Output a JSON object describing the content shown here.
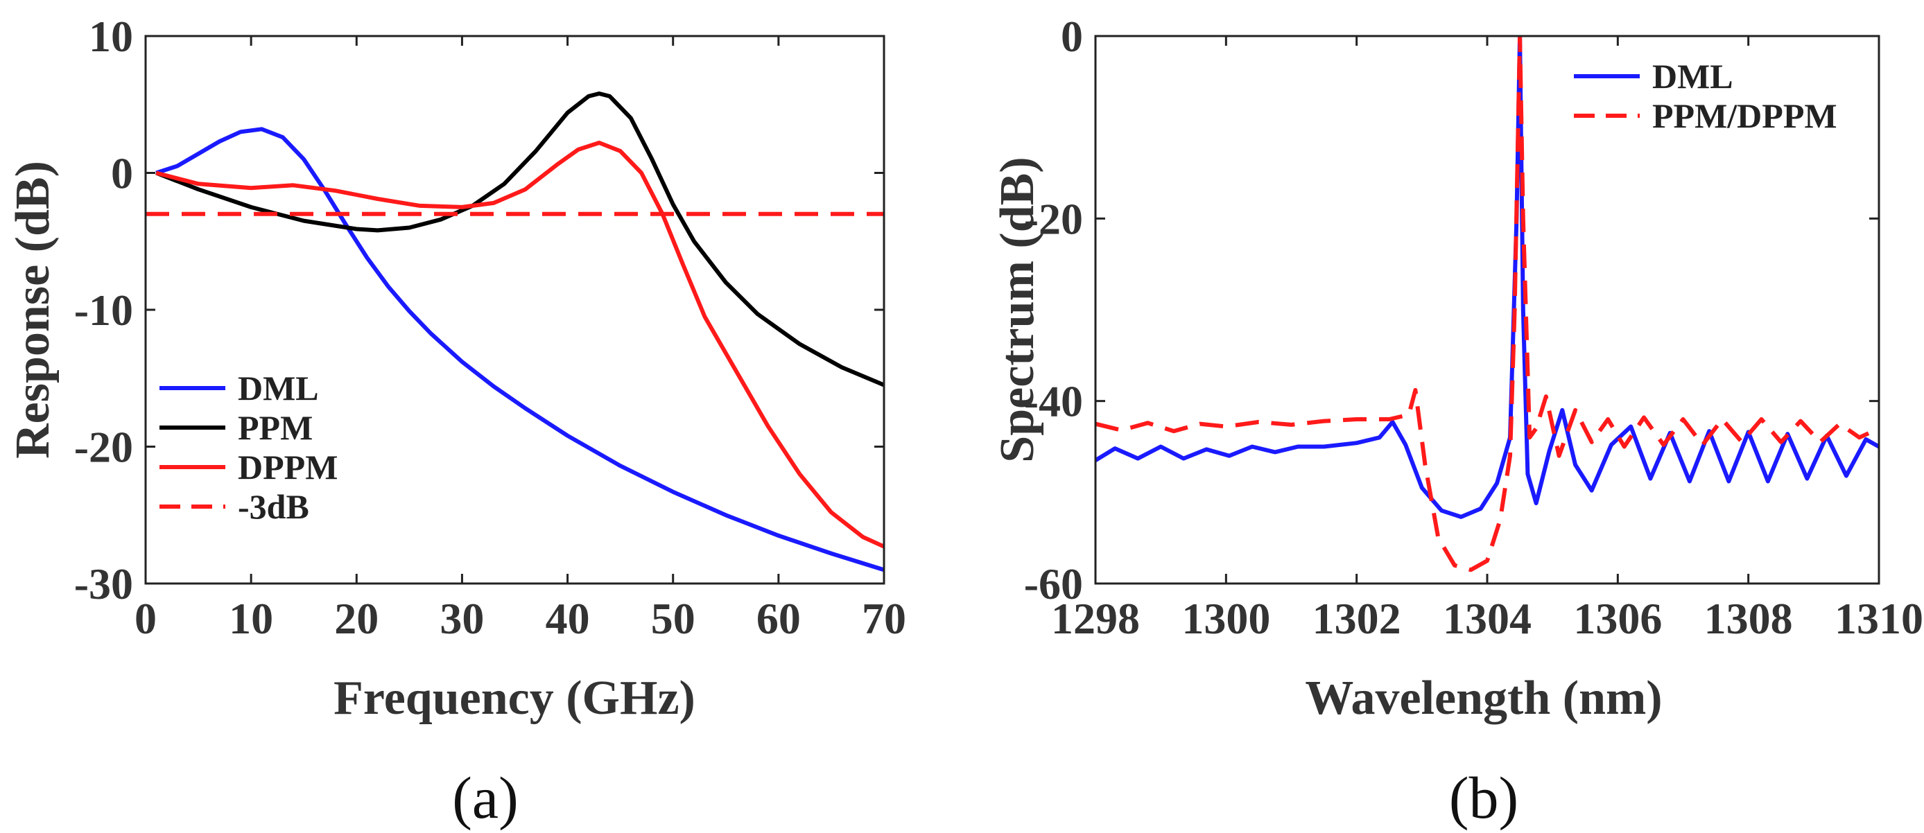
{
  "colors": {
    "blue": "#1a1aff",
    "black": "#000000",
    "red": "#ff1a1a",
    "axis": "#222222"
  },
  "chart_data": [
    {
      "type": "line",
      "caption": "(a)",
      "xlabel": "Frequency (GHz)",
      "ylabel": "Response (dB)",
      "xlim": [
        0,
        70
      ],
      "ylim": [
        -30,
        10
      ],
      "xticks": [
        "0",
        "10",
        "20",
        "30",
        "40",
        "50",
        "60",
        "70"
      ],
      "yticks": [
        "-30",
        "-20",
        "-10",
        "0",
        "10"
      ],
      "grid": false,
      "legend_position": "bottom-left",
      "series": [
        {
          "name": "DML",
          "color": "#1a1aff",
          "dash": "solid",
          "x": [
            1,
            3,
            5,
            7,
            9,
            11,
            13,
            15,
            17,
            19,
            21,
            23,
            25,
            27,
            30,
            33,
            36,
            40,
            45,
            50,
            55,
            60,
            65,
            70
          ],
          "y": [
            0,
            0.5,
            1.4,
            2.3,
            3.0,
            3.2,
            2.6,
            1.0,
            -1.3,
            -3.8,
            -6.2,
            -8.3,
            -10.1,
            -11.7,
            -13.8,
            -15.6,
            -17.2,
            -19.2,
            -21.4,
            -23.3,
            -25.0,
            -26.5,
            -27.8,
            -29.0
          ]
        },
        {
          "name": "PPM",
          "color": "#000000",
          "dash": "solid",
          "x": [
            1,
            5,
            10,
            15,
            20,
            22,
            25,
            28,
            31,
            34,
            37,
            40,
            42,
            43,
            44,
            46,
            48,
            50,
            52,
            55,
            58,
            62,
            66,
            70
          ],
          "y": [
            0,
            -1.2,
            -2.5,
            -3.5,
            -4.1,
            -4.2,
            -4.0,
            -3.4,
            -2.4,
            -0.8,
            1.6,
            4.4,
            5.6,
            5.8,
            5.6,
            4.0,
            1.0,
            -2.3,
            -5.0,
            -8.0,
            -10.3,
            -12.5,
            -14.2,
            -15.5
          ]
        },
        {
          "name": "DPPM",
          "color": "#ff1a1a",
          "dash": "solid",
          "x": [
            1,
            5,
            10,
            14,
            18,
            22,
            26,
            30,
            33,
            36,
            39,
            41,
            43,
            45,
            47,
            49,
            51,
            53,
            56,
            59,
            62,
            65,
            68,
            70
          ],
          "y": [
            0,
            -0.8,
            -1.1,
            -0.9,
            -1.3,
            -1.9,
            -2.4,
            -2.5,
            -2.2,
            -1.2,
            0.6,
            1.7,
            2.2,
            1.6,
            0.0,
            -3.0,
            -6.8,
            -10.5,
            -14.5,
            -18.5,
            -22.0,
            -24.8,
            -26.6,
            -27.3
          ]
        },
        {
          "name": "-3dB",
          "color": "#ff1a1a",
          "dash": "dashed",
          "x": [
            0,
            70
          ],
          "y": [
            -3,
            -3
          ]
        }
      ]
    },
    {
      "type": "line",
      "caption": "(b)",
      "xlabel": "Wavelength (nm)",
      "ylabel": "Spectrum (dB)",
      "xlim": [
        1298,
        1310
      ],
      "ylim": [
        -60,
        0
      ],
      "xticks": [
        "1298",
        "1300",
        "1302",
        "1304",
        "1306",
        "1308",
        "1310"
      ],
      "yticks": [
        "-60",
        "-40",
        "-20",
        "0"
      ],
      "grid": false,
      "legend_position": "top-right",
      "series": [
        {
          "name": "DML",
          "color": "#1a1aff",
          "dash": "solid",
          "x": [
            1298,
            1298.3,
            1298.65,
            1299,
            1299.35,
            1299.7,
            1300.05,
            1300.4,
            1300.75,
            1301.1,
            1301.5,
            1302.0,
            1302.35,
            1302.55,
            1302.75,
            1303.0,
            1303.3,
            1303.6,
            1303.9,
            1304.15,
            1304.35,
            1304.45,
            1304.5,
            1304.55,
            1304.62,
            1304.75,
            1304.95,
            1305.15,
            1305.35,
            1305.6,
            1305.9,
            1306.2,
            1306.5,
            1306.8,
            1307.1,
            1307.4,
            1307.7,
            1308.0,
            1308.3,
            1308.6,
            1308.9,
            1309.2,
            1309.5,
            1309.8,
            1310
          ],
          "y": [
            -46.5,
            -45.2,
            -46.3,
            -45.0,
            -46.3,
            -45.3,
            -46.0,
            -45.0,
            -45.6,
            -45.0,
            -45.0,
            -44.6,
            -44.0,
            -42.3,
            -44.8,
            -49.5,
            -52.0,
            -52.7,
            -51.8,
            -49.0,
            -44.0,
            -20.0,
            0,
            -30.0,
            -48.0,
            -51.2,
            -45.5,
            -41.0,
            -47.0,
            -49.8,
            -44.8,
            -42.8,
            -48.5,
            -43.5,
            -48.8,
            -43.3,
            -48.8,
            -43.4,
            -48.8,
            -43.6,
            -48.5,
            -43.8,
            -48.2,
            -44.2,
            -45.0
          ]
        },
        {
          "name": "PPM/DPPM",
          "color": "#ff1a1a",
          "dash": "dashed",
          "x": [
            1298,
            1298.4,
            1298.8,
            1299.2,
            1299.6,
            1300.0,
            1300.5,
            1301.0,
            1301.5,
            1302.0,
            1302.5,
            1302.8,
            1302.9,
            1303.05,
            1303.25,
            1303.5,
            1303.75,
            1304.0,
            1304.2,
            1304.35,
            1304.42,
            1304.5,
            1304.55,
            1304.65,
            1304.75,
            1304.9,
            1305.1,
            1305.35,
            1305.6,
            1305.85,
            1306.1,
            1306.4,
            1306.7,
            1307.0,
            1307.3,
            1307.6,
            1307.9,
            1308.2,
            1308.5,
            1308.8,
            1309.1,
            1309.4,
            1309.7,
            1310
          ],
          "y": [
            -42.5,
            -43.2,
            -42.4,
            -43.3,
            -42.5,
            -42.8,
            -42.3,
            -42.6,
            -42.2,
            -42.0,
            -42.0,
            -41.5,
            -38.8,
            -47.0,
            -55.0,
            -58.0,
            -58.5,
            -57.5,
            -53.0,
            -46.0,
            -30.0,
            0,
            -20.0,
            -44.0,
            -43.0,
            -39.5,
            -46.0,
            -41.0,
            -44.5,
            -42.0,
            -45.0,
            -41.8,
            -44.8,
            -42.0,
            -44.8,
            -42.0,
            -44.5,
            -42.0,
            -44.5,
            -42.2,
            -44.5,
            -42.5,
            -44.0,
            -43.0
          ]
        }
      ]
    }
  ]
}
